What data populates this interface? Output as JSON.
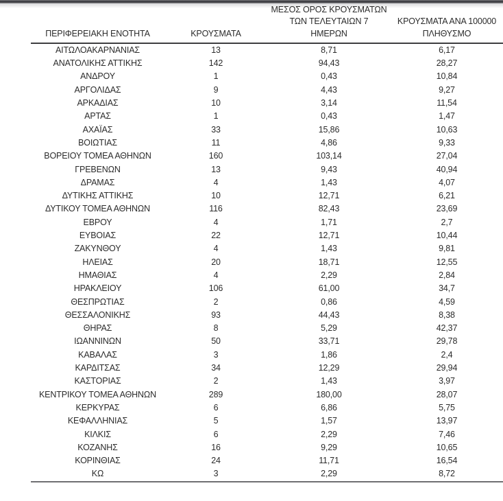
{
  "table": {
    "columns": [
      {
        "id": "region",
        "label": "ΠΕΡΙΦΕΡΕΙΑΚΗ ΕΝΟΤΗΤΑ"
      },
      {
        "id": "cases",
        "label": "ΚΡΟΥΣΜΑΤΑ"
      },
      {
        "id": "avg7",
        "label": "ΜΕΣΟΣ ΟΡΟΣ ΚΡΟΥΣΜΑΤΩΝ\nΤΩΝ ΤΕΛΕΥΤΑΙΩΝ 7\nΗΜΕΡΩΝ"
      },
      {
        "id": "per100k",
        "label": "ΚΡΟΥΣΜΑΤΑ ΑΝΑ 100000\nΠΛΗΘΥΣΜΟ"
      }
    ],
    "rows": [
      {
        "region": "ΑΙΤΩΛΟΑΚΑΡΝΑΝΙΑΣ",
        "cases": "13",
        "avg7": "8,71",
        "per100k": "6,17"
      },
      {
        "region": "ΑΝΑΤΟΛΙΚΗΣ ΑΤΤΙΚΗΣ",
        "cases": "142",
        "avg7": "94,43",
        "per100k": "28,27"
      },
      {
        "region": "ΑΝΔΡΟΥ",
        "cases": "1",
        "avg7": "0,43",
        "per100k": "10,84"
      },
      {
        "region": "ΑΡΓΟΛΙΔΑΣ",
        "cases": "9",
        "avg7": "4,43",
        "per100k": "9,27"
      },
      {
        "region": "ΑΡΚΑΔΙΑΣ",
        "cases": "10",
        "avg7": "3,14",
        "per100k": "11,54"
      },
      {
        "region": "ΑΡΤΑΣ",
        "cases": "1",
        "avg7": "0,43",
        "per100k": "1,47"
      },
      {
        "region": "ΑΧΑΪΑΣ",
        "cases": "33",
        "avg7": "15,86",
        "per100k": "10,63"
      },
      {
        "region": "ΒΟΙΩΤΙΑΣ",
        "cases": "11",
        "avg7": "4,86",
        "per100k": "9,33"
      },
      {
        "region": "ΒΟΡΕΙΟΥ ΤΟΜΕΑ ΑΘΗΝΩΝ",
        "cases": "160",
        "avg7": "103,14",
        "per100k": "27,04"
      },
      {
        "region": "ΓΡΕΒΕΝΩΝ",
        "cases": "13",
        "avg7": "9,43",
        "per100k": "40,94"
      },
      {
        "region": "ΔΡΑΜΑΣ",
        "cases": "4",
        "avg7": "1,43",
        "per100k": "4,07"
      },
      {
        "region": "ΔΥΤΙΚΗΣ ΑΤΤΙΚΗΣ",
        "cases": "10",
        "avg7": "12,71",
        "per100k": "6,21"
      },
      {
        "region": "ΔΥΤΙΚΟΥ ΤΟΜΕΑ ΑΘΗΝΩΝ",
        "cases": "116",
        "avg7": "82,43",
        "per100k": "23,69"
      },
      {
        "region": "ΕΒΡΟΥ",
        "cases": "4",
        "avg7": "1,71",
        "per100k": "2,7"
      },
      {
        "region": "ΕΥΒΟΙΑΣ",
        "cases": "22",
        "avg7": "12,71",
        "per100k": "10,44"
      },
      {
        "region": "ΖΑΚΥΝΘΟΥ",
        "cases": "4",
        "avg7": "1,43",
        "per100k": "9,81"
      },
      {
        "region": "ΗΛΕΙΑΣ",
        "cases": "20",
        "avg7": "18,71",
        "per100k": "12,55"
      },
      {
        "region": "ΗΜΑΘΙΑΣ",
        "cases": "4",
        "avg7": "2,29",
        "per100k": "2,84"
      },
      {
        "region": "ΗΡΑΚΛΕΙΟΥ",
        "cases": "106",
        "avg7": "61,00",
        "per100k": "34,7"
      },
      {
        "region": "ΘΕΣΠΡΩΤΙΑΣ",
        "cases": "2",
        "avg7": "0,86",
        "per100k": "4,59"
      },
      {
        "region": "ΘΕΣΣΑΛΟΝΙΚΗΣ",
        "cases": "93",
        "avg7": "44,43",
        "per100k": "8,38"
      },
      {
        "region": "ΘΗΡΑΣ",
        "cases": "8",
        "avg7": "5,29",
        "per100k": "42,37"
      },
      {
        "region": "ΙΩΑΝΝΙΝΩΝ",
        "cases": "50",
        "avg7": "33,71",
        "per100k": "29,78"
      },
      {
        "region": "ΚΑΒΑΛΑΣ",
        "cases": "3",
        "avg7": "1,86",
        "per100k": "2,4"
      },
      {
        "region": "ΚΑΡΔΙΤΣΑΣ",
        "cases": "34",
        "avg7": "12,29",
        "per100k": "29,94"
      },
      {
        "region": "ΚΑΣΤΟΡΙΑΣ",
        "cases": "2",
        "avg7": "1,43",
        "per100k": "3,97"
      },
      {
        "region": "ΚΕΝΤΡΙΚΟΥ ΤΟΜΕΑ ΑΘΗΝΩΝ",
        "cases": "289",
        "avg7": "180,00",
        "per100k": "28,07"
      },
      {
        "region": "ΚΕΡΚΥΡΑΣ",
        "cases": "6",
        "avg7": "6,86",
        "per100k": "5,75"
      },
      {
        "region": "ΚΕΦΑΛΛΗΝΙΑΣ",
        "cases": "5",
        "avg7": "1,57",
        "per100k": "13,97"
      },
      {
        "region": "ΚΙΛΚΙΣ",
        "cases": "6",
        "avg7": "2,29",
        "per100k": "7,46"
      },
      {
        "region": "ΚΟΖΑΝΗΣ",
        "cases": "16",
        "avg7": "9,29",
        "per100k": "10,65"
      },
      {
        "region": "ΚΟΡΙΝΘΙΑΣ",
        "cases": "24",
        "avg7": "11,71",
        "per100k": "16,54"
      },
      {
        "region": "ΚΩ",
        "cases": "3",
        "avg7": "2,29",
        "per100k": "8,72"
      }
    ]
  }
}
